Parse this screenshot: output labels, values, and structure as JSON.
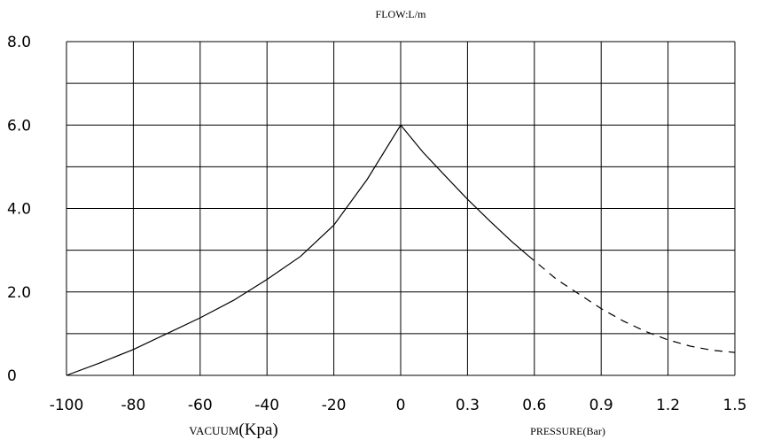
{
  "chart_data": {
    "type": "line",
    "title": "FLOW:L/m",
    "x_tick_labels": [
      "-100",
      "-80",
      "-60",
      "-40",
      "-20",
      "0",
      "0.3",
      "0.6",
      "0.9",
      "1.2",
      "1.5"
    ],
    "y_tick_labels": [
      "0",
      "2.0",
      "4.0",
      "6.0",
      "8.0"
    ],
    "ylim": [
      0,
      8
    ],
    "grid": true,
    "xlabel_vacuum_prefix": "VACUUM",
    "xlabel_vacuum_unit": "(Kpa)",
    "xlabel_pressure": "PRESSURE(Bar)",
    "series": [
      {
        "style": "solid",
        "section": "vacuum",
        "color": "#000000",
        "x": [
          -100,
          -90,
          -80,
          -70,
          -60,
          -50,
          -40,
          -30,
          -20,
          -10,
          0
        ],
        "y": [
          0,
          0.3,
          0.62,
          1.0,
          1.38,
          1.8,
          2.3,
          2.85,
          3.6,
          4.7,
          6.0
        ]
      },
      {
        "style": "solid",
        "section": "pressure",
        "color": "#000000",
        "x": [
          0,
          0.1,
          0.2,
          0.3,
          0.4,
          0.5,
          0.57
        ],
        "y": [
          6.0,
          5.35,
          4.78,
          4.22,
          3.7,
          3.2,
          2.88
        ]
      },
      {
        "style": "dashed",
        "section": "pressure",
        "color": "#000000",
        "x": [
          0.57,
          0.7,
          0.8,
          0.9,
          1.0,
          1.1,
          1.2,
          1.3,
          1.4,
          1.5
        ],
        "y": [
          2.88,
          2.3,
          1.95,
          1.6,
          1.3,
          1.05,
          0.85,
          0.7,
          0.6,
          0.55
        ]
      }
    ]
  }
}
